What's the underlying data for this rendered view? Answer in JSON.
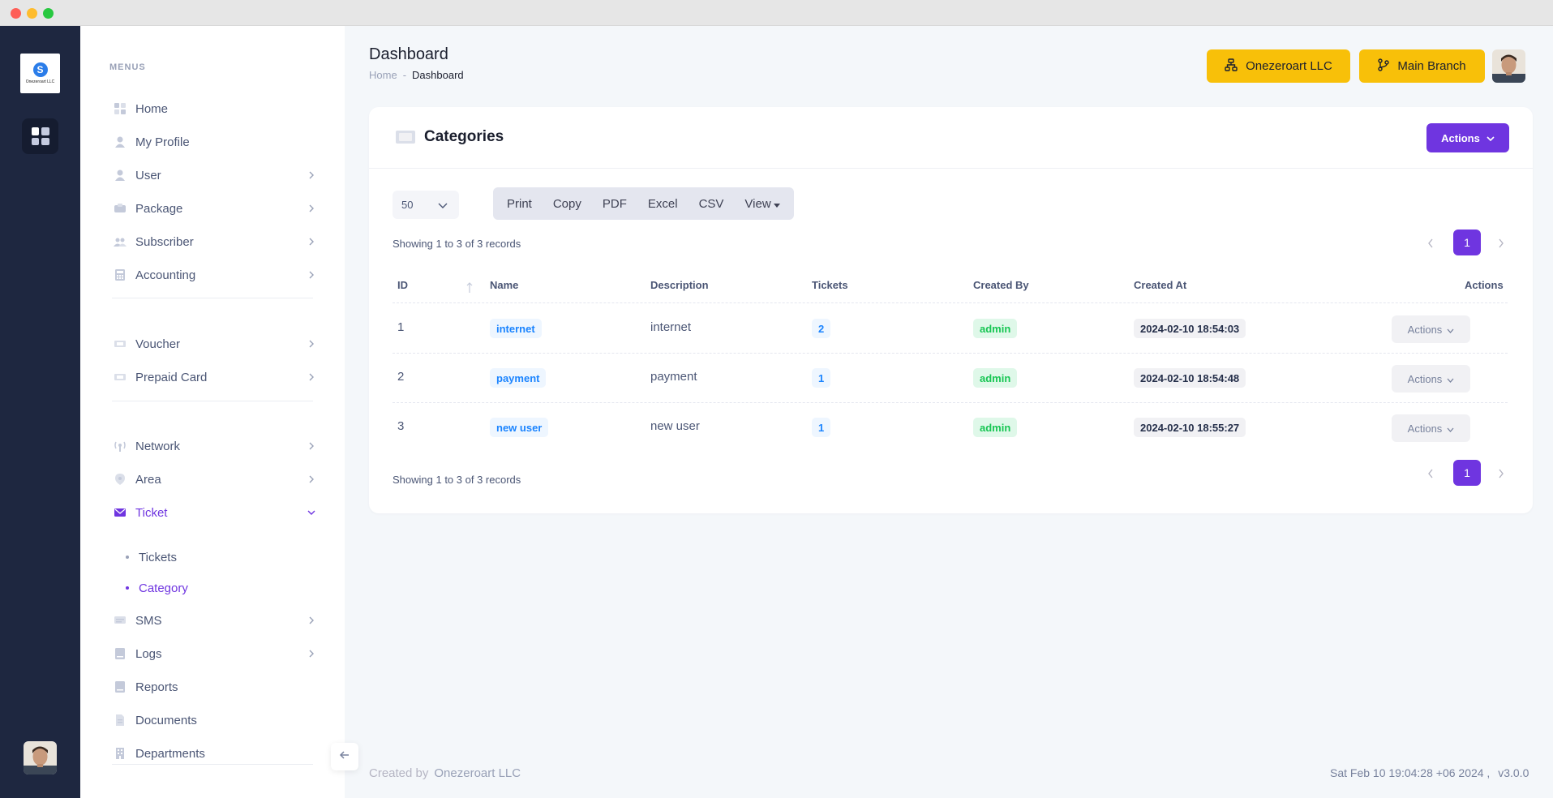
{
  "window": {
    "controls": [
      "close",
      "minimize",
      "maximize"
    ]
  },
  "logo": {
    "text": "Onezeroart LLC"
  },
  "sidebar": {
    "heading": "MENUS",
    "items": [
      {
        "label": "Home",
        "icon": "grid-icon",
        "chevron": false
      },
      {
        "label": "My Profile",
        "icon": "user-icon",
        "chevron": false
      },
      {
        "label": "User",
        "icon": "user-icon",
        "chevron": true
      },
      {
        "label": "Package",
        "icon": "package-icon",
        "chevron": true
      },
      {
        "label": "Subscriber",
        "icon": "users-icon",
        "chevron": true
      },
      {
        "label": "Accounting",
        "icon": "calculator-icon",
        "chevron": true
      },
      {
        "label": "Voucher",
        "icon": "ticket-icon",
        "chevron": true
      },
      {
        "label": "Prepaid Card",
        "icon": "card-icon",
        "chevron": true
      },
      {
        "label": "Network",
        "icon": "antenna-icon",
        "chevron": true
      },
      {
        "label": "Area",
        "icon": "map-pin-icon",
        "chevron": true
      },
      {
        "label": "Ticket",
        "icon": "envelope-icon",
        "chevron": true,
        "expanded": true
      },
      {
        "label": "SMS",
        "icon": "message-icon",
        "chevron": true
      },
      {
        "label": "Logs",
        "icon": "book-icon",
        "chevron": true
      },
      {
        "label": "Reports",
        "icon": "book-icon",
        "chevron": false
      },
      {
        "label": "Documents",
        "icon": "document-icon",
        "chevron": false
      },
      {
        "label": "Departments",
        "icon": "building-icon",
        "chevron": false
      }
    ],
    "ticket_sub": [
      {
        "label": "Tickets",
        "active": false
      },
      {
        "label": "Category",
        "active": true
      }
    ]
  },
  "header": {
    "title": "Dashboard",
    "breadcrumb": {
      "home": "Home",
      "separator": "-",
      "current": "Dashboard"
    },
    "company_button": "Onezeroart LLC",
    "branch_button": "Main Branch"
  },
  "card": {
    "title": "Categories",
    "actions_label": "Actions",
    "page_size": "50",
    "export_buttons": [
      "Print",
      "Copy",
      "PDF",
      "Excel",
      "CSV",
      "View"
    ],
    "showing_text": "Showing 1 to 3 of 3 records",
    "current_page": "1",
    "columns": [
      "ID",
      "Name",
      "Description",
      "Tickets",
      "Created By",
      "Created At",
      "Actions"
    ],
    "rows": [
      {
        "id": "1",
        "name": "internet",
        "description": "internet",
        "tickets": "2",
        "created_by": "admin",
        "created_at": "2024-02-10 18:54:03",
        "actions": "Actions"
      },
      {
        "id": "2",
        "name": "payment",
        "description": "payment",
        "tickets": "1",
        "created_by": "admin",
        "created_at": "2024-02-10 18:54:48",
        "actions": "Actions"
      },
      {
        "id": "3",
        "name": "new user",
        "description": "new user",
        "tickets": "1",
        "created_by": "admin",
        "created_at": "2024-02-10 18:55:27",
        "actions": "Actions"
      }
    ]
  },
  "footer": {
    "created_by_label": "Created by",
    "brand": "Onezeroart LLC",
    "timestamp": "Sat Feb 10 19:04:28 +06 2024 ,",
    "version": "v3.0.0"
  },
  "colors": {
    "accent": "#6f35e0",
    "header_button": "#f8c009",
    "rail": "#1e2740",
    "badge_blue": "#1b84ff",
    "badge_green": "#17c653"
  }
}
